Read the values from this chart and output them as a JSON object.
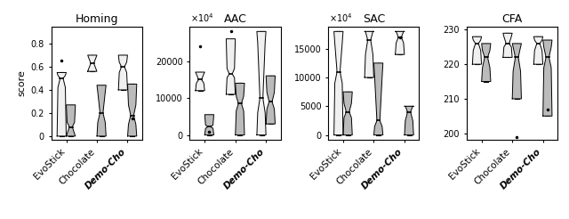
{
  "titles": [
    "Homing",
    "AAC",
    "SAC",
    "CFA"
  ],
  "xlabel_groups": [
    "EvoStick",
    "Chocolate",
    "Demo-Cho"
  ],
  "ylabel": "score",
  "homing": {
    "evostick_white": {
      "med": 0.5,
      "q1": 0.42,
      "q3": 0.525,
      "whislo": 0.0,
      "whishi": 0.55,
      "fliers": [
        0.65
      ]
    },
    "evostick_gray": {
      "med": 0.08,
      "q1": 0.02,
      "q3": 0.12,
      "whislo": 0.0,
      "whishi": 0.27,
      "fliers": []
    },
    "chocolate_white": {
      "med": 0.63,
      "q1": 0.58,
      "q3": 0.68,
      "whislo": 0.56,
      "whishi": 0.7,
      "fliers": []
    },
    "chocolate_gray": {
      "med": 0.2,
      "q1": 0.12,
      "q3": 0.38,
      "whislo": 0.0,
      "whishi": 0.44,
      "fliers": []
    },
    "demcho_white": {
      "med": 0.6,
      "q1": 0.55,
      "q3": 0.64,
      "whislo": 0.4,
      "whishi": 0.7,
      "fliers": []
    },
    "demcho_gray": {
      "med": 0.18,
      "q1": 0.1,
      "q3": 0.27,
      "whislo": 0.0,
      "whishi": 0.45,
      "fliers": [
        0.15
      ]
    }
  },
  "aac": {
    "evostick_white": {
      "med": 15000,
      "q1": 14000,
      "q3": 16500,
      "whislo": 12000,
      "whishi": 17000,
      "fliers": [
        24000
      ]
    },
    "evostick_gray": {
      "med": 2200,
      "q1": 1800,
      "q3": 2700,
      "whislo": 0,
      "whishi": 5500,
      "fliers": [
        800
      ]
    },
    "chocolate_white": {
      "med": 16500,
      "q1": 15500,
      "q3": 18000,
      "whislo": 11000,
      "whishi": 26000,
      "fliers": [
        28000
      ]
    },
    "chocolate_gray": {
      "med": 8500,
      "q1": 6500,
      "q3": 10500,
      "whislo": 0,
      "whishi": 14000,
      "fliers": []
    },
    "demcho_white": {
      "med": 10000,
      "q1": 6000,
      "q3": 25000,
      "whislo": 0,
      "whishi": 28000,
      "fliers": []
    },
    "demcho_gray": {
      "med": 9000,
      "q1": 7000,
      "q3": 11500,
      "whislo": 3000,
      "whishi": 16000,
      "fliers": []
    }
  },
  "sac": {
    "evostick_white": {
      "med": 11000,
      "q1": 9000,
      "q3": 16000,
      "whislo": 0,
      "whishi": 18000,
      "fliers": []
    },
    "evostick_gray": {
      "med": 4000,
      "q1": 3000,
      "q3": 5500,
      "whislo": 0,
      "whishi": 7500,
      "fliers": []
    },
    "chocolate_white": {
      "med": 16500,
      "q1": 14000,
      "q3": 18000,
      "whislo": 10000,
      "whishi": 18000,
      "fliers": []
    },
    "chocolate_gray": {
      "med": 2500,
      "q1": 1500,
      "q3": 10000,
      "whislo": 0,
      "whishi": 12500,
      "fliers": []
    },
    "demcho_white": {
      "med": 17000,
      "q1": 16000,
      "q3": 18000,
      "whislo": 14000,
      "whishi": 18000,
      "fliers": [
        17000
      ]
    },
    "demcho_gray": {
      "med": 4000,
      "q1": 2500,
      "q3": 5000,
      "whislo": 0,
      "whishi": 5000,
      "fliers": []
    }
  },
  "cfa": {
    "evostick_white": {
      "med": 226,
      "q1": 224,
      "q3": 227,
      "whislo": 220,
      "whishi": 228,
      "fliers": []
    },
    "evostick_gray": {
      "med": 222,
      "q1": 219,
      "q3": 224,
      "whislo": 215,
      "whishi": 226,
      "fliers": []
    },
    "chocolate_white": {
      "med": 226,
      "q1": 225,
      "q3": 228,
      "whislo": 222,
      "whishi": 229,
      "fliers": []
    },
    "chocolate_gray": {
      "med": 222,
      "q1": 218,
      "q3": 225,
      "whislo": 210,
      "whishi": 226,
      "fliers": [
        199
      ]
    },
    "demcho_white": {
      "med": 226,
      "q1": 224,
      "q3": 227,
      "whislo": 220,
      "whishi": 228,
      "fliers": []
    },
    "demcho_gray": {
      "med": 222,
      "q1": 219,
      "q3": 225,
      "whislo": 205,
      "whishi": 227,
      "fliers": [
        207
      ]
    }
  },
  "yticks_homing": [
    0,
    0.2,
    0.4,
    0.6,
    0.8
  ],
  "yticks_aac": [
    0,
    10000,
    20000
  ],
  "yticks_sac": [
    0,
    5000,
    10000,
    15000
  ],
  "yticks_cfa": [
    200,
    210,
    220,
    230
  ],
  "ylim_homing": [
    null,
    0.95
  ],
  "ylim_aac": [
    null,
    null
  ],
  "ylim_sac": [
    null,
    null
  ],
  "ylim_cfa": [
    198,
    231
  ],
  "white_color": "#f0f0f0",
  "gray_color": "#bbbbbb",
  "scale_aac": 10000,
  "scale_sac": 10000
}
